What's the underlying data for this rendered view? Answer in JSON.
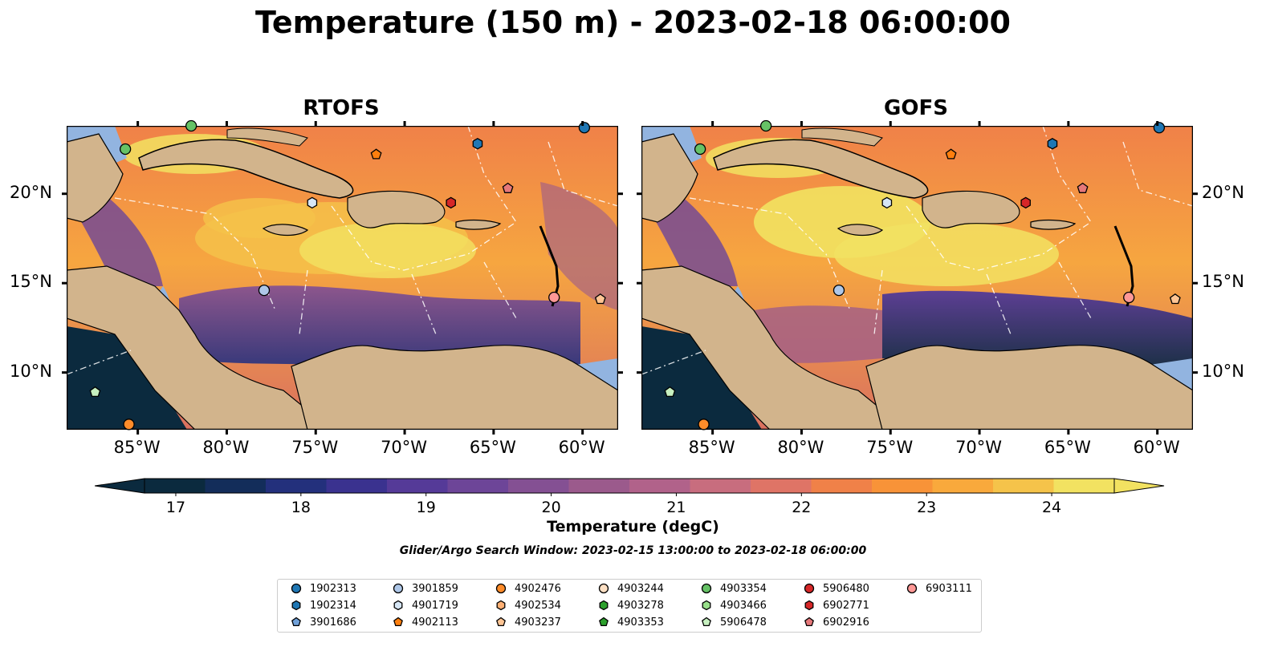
{
  "title": "Temperature (150 m) - 2023-02-18 06:00:00",
  "panels": [
    {
      "title": "RTOFS"
    },
    {
      "title": "GOFS"
    }
  ],
  "lon_ticks": [
    "85°W",
    "80°W",
    "75°W",
    "70°W",
    "65°W",
    "60°W"
  ],
  "lat_ticks": [
    "20°N",
    "15°N",
    "10°N"
  ],
  "colorbar": {
    "label": "Temperature (degC)",
    "ticks": [
      "17",
      "18",
      "19",
      "20",
      "21",
      "22",
      "23",
      "24"
    ],
    "range": [
      16.75,
      24.5
    ],
    "colors": [
      "#0b2a3e",
      "#132d5a",
      "#23307c",
      "#3a328f",
      "#553a98",
      "#6d4598",
      "#845093",
      "#9b5a8c",
      "#b1628a",
      "#c86d7e",
      "#df7466",
      "#f08148",
      "#f89338",
      "#f9a93c",
      "#f5c34a",
      "#f2e261"
    ]
  },
  "search_window": "Glider/Argo Search Window: 2023-02-15 13:00:00 to 2023-02-18 06:00:00",
  "legend": [
    {
      "id": "1902313",
      "color": "#1f77b4",
      "marker": "circle"
    },
    {
      "id": "1902314",
      "color": "#1f77b4",
      "marker": "hexagon"
    },
    {
      "id": "3901686",
      "color": "#6fa0d8",
      "marker": "pentagon"
    },
    {
      "id": "3901859",
      "color": "#aec7e8",
      "marker": "circle"
    },
    {
      "id": "4901719",
      "color": "#d6e6f5",
      "marker": "hexagon"
    },
    {
      "id": "4902113",
      "color": "#ff7f0e",
      "marker": "pentagon"
    },
    {
      "id": "4902476",
      "color": "#ff8c2a",
      "marker": "circle"
    },
    {
      "id": "4902534",
      "color": "#ffb074",
      "marker": "hexagon"
    },
    {
      "id": "4903237",
      "color": "#ffc594",
      "marker": "pentagon"
    },
    {
      "id": "4903244",
      "color": "#fde0c4",
      "marker": "circle"
    },
    {
      "id": "4903278",
      "color": "#2ca02c",
      "marker": "hexagon"
    },
    {
      "id": "4903353",
      "color": "#2ca02c",
      "marker": "pentagon"
    },
    {
      "id": "4903354",
      "color": "#66c266",
      "marker": "circle"
    },
    {
      "id": "4903466",
      "color": "#98df8a",
      "marker": "hexagon"
    },
    {
      "id": "5906478",
      "color": "#c7f0c0",
      "marker": "pentagon"
    },
    {
      "id": "5906480",
      "color": "#d62728",
      "marker": "circle"
    },
    {
      "id": "6902771",
      "color": "#d62728",
      "marker": "hexagon"
    },
    {
      "id": "6902916",
      "color": "#e6787a",
      "marker": "pentagon"
    },
    {
      "id": "6903111",
      "color": "#ff9896",
      "marker": "circle"
    }
  ]
}
